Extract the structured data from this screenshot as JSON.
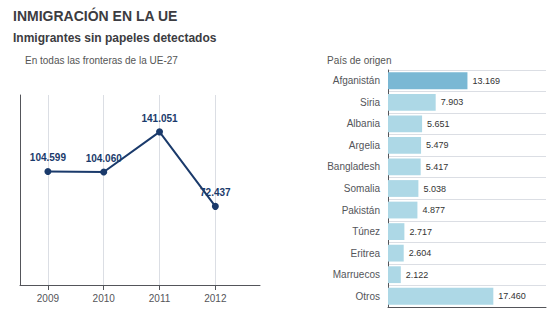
{
  "title": "INMIGRACIÓN EN LA UE",
  "subtitle": "Inmigrantes sin papeles detectados",
  "chart_data": [
    {
      "type": "line",
      "title": "En todas las fronteras de la UE-27",
      "x": [
        2009,
        2010,
        2011,
        2012
      ],
      "values": [
        104599,
        104060,
        141051,
        72437
      ],
      "value_labels": [
        "104.599",
        "104.060",
        "141.051",
        "72.437"
      ],
      "color": "#1a3a6b",
      "marker": "circle",
      "data_labels": true,
      "xlim": [
        2008.5,
        2012.8
      ],
      "xticks": [
        2009,
        2010,
        2011,
        2012
      ],
      "ylim": [
        0,
        175000
      ],
      "tick_labels": "x",
      "grid": "x"
    },
    {
      "type": "bar",
      "orientation": "horizontal",
      "title": "País de origen",
      "categories": [
        "Afganistán",
        "Siria",
        "Albania",
        "Argelia",
        "Bangladesh",
        "Somalia",
        "Pakistán",
        "Túnez",
        "Eritrea",
        "Marruecos",
        "Otros"
      ],
      "values": [
        13169,
        7903,
        5651,
        5479,
        5417,
        5038,
        4877,
        2717,
        2604,
        2122,
        17460
      ],
      "value_labels": [
        "13.169",
        "7.903",
        "5.651",
        "5.479",
        "5.417",
        "5.038",
        "4.877",
        "2.717",
        "2.604",
        "2.122",
        "17.460"
      ],
      "colors": [
        "#7ab8d4",
        "#add8e6",
        "#add8e6",
        "#add8e6",
        "#add8e6",
        "#add8e6",
        "#add8e6",
        "#add8e6",
        "#add8e6",
        "#add8e6",
        "#add8e6"
      ],
      "data_labels": true,
      "xlim": [
        0,
        26190
      ],
      "tick_labels": "y",
      "grid": "y"
    }
  ]
}
